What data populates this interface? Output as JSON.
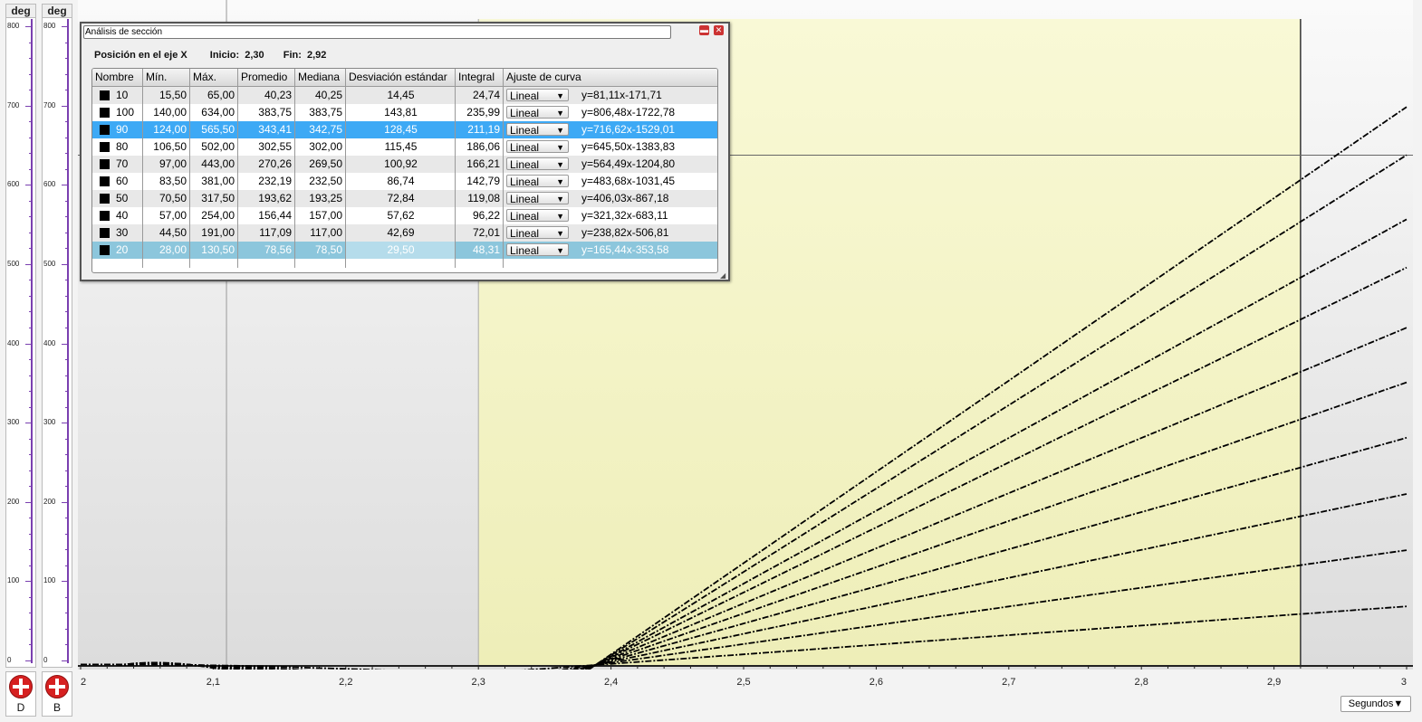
{
  "axes_left": [
    {
      "unit": "deg",
      "ticks": [
        "800",
        "700",
        "600",
        "500",
        "400",
        "300",
        "200",
        "100",
        "0"
      ],
      "button_label": "D"
    },
    {
      "unit": "deg",
      "ticks": [
        "800",
        "700",
        "600",
        "500",
        "400",
        "300",
        "200",
        "100",
        "0"
      ],
      "button_label": "B"
    }
  ],
  "x_axis": {
    "ticks": [
      "2",
      "2,1",
      "2,2",
      "2,3",
      "2,4",
      "2,5",
      "2,6",
      "2,7",
      "2,8",
      "2,9",
      "3"
    ],
    "units_label": "Segundos▼"
  },
  "dialog": {
    "title": "Análisis de sección",
    "minimize_glyph": "▬",
    "close_glyph": "✕",
    "position_label": "Posición en el eje X",
    "start_label": "Inicio:",
    "start_value": "2,30",
    "end_label": "Fin:",
    "end_value": "2,92",
    "columns": [
      "Nombre",
      "Mín.",
      "Máx.",
      "Promedio",
      "Mediana",
      "Desviación estándar",
      "Integral",
      "Ajuste de curva"
    ],
    "fit_option": "Lineal",
    "rows": [
      {
        "name": "10",
        "min": "15,50",
        "max": "65,00",
        "avg": "40,23",
        "median": "40,25",
        "std": "14,45",
        "integral": "24,74",
        "eq": "y=81,11x-171,71"
      },
      {
        "name": "100",
        "min": "140,00",
        "max": "634,00",
        "avg": "383,75",
        "median": "383,75",
        "std": "143,81",
        "integral": "235,99",
        "eq": "y=806,48x-1722,78"
      },
      {
        "name": "90",
        "min": "124,00",
        "max": "565,50",
        "avg": "343,41",
        "median": "342,75",
        "std": "128,45",
        "integral": "211,19",
        "eq": "y=716,62x-1529,01"
      },
      {
        "name": "80",
        "min": "106,50",
        "max": "502,00",
        "avg": "302,55",
        "median": "302,00",
        "std": "115,45",
        "integral": "186,06",
        "eq": "y=645,50x-1383,83"
      },
      {
        "name": "70",
        "min": "97,00",
        "max": "443,00",
        "avg": "270,26",
        "median": "269,50",
        "std": "100,92",
        "integral": "166,21",
        "eq": "y=564,49x-1204,80"
      },
      {
        "name": "60",
        "min": "83,50",
        "max": "381,00",
        "avg": "232,19",
        "median": "232,50",
        "std": "86,74",
        "integral": "142,79",
        "eq": "y=483,68x-1031,45"
      },
      {
        "name": "50",
        "min": "70,50",
        "max": "317,50",
        "avg": "193,62",
        "median": "193,25",
        "std": "72,84",
        "integral": "119,08",
        "eq": "y=406,03x-867,18"
      },
      {
        "name": "40",
        "min": "57,00",
        "max": "254,00",
        "avg": "156,44",
        "median": "157,00",
        "std": "57,62",
        "integral": "96,22",
        "eq": "y=321,32x-683,11"
      },
      {
        "name": "30",
        "min": "44,50",
        "max": "191,00",
        "avg": "117,09",
        "median": "117,00",
        "std": "42,69",
        "integral": "72,01",
        "eq": "y=238,82x-506,81"
      },
      {
        "name": "20",
        "min": "28,00",
        "max": "130,50",
        "avg": "78,56",
        "median": "78,50",
        "std": "29,50",
        "integral": "48,31",
        "eq": "y=165,44x-353,58"
      }
    ]
  },
  "chart_data": {
    "type": "line",
    "xlim": [
      2,
      3
    ],
    "ylim": [
      0,
      800
    ],
    "selection_x": [
      2.3,
      2.92
    ],
    "cursor_x": 2.11,
    "cursor_y": 635,
    "end_values": [
      695,
      635,
      555,
      495,
      420,
      352,
      283,
      213,
      143,
      73
    ],
    "colors": {
      "selection": "#f7f7c8",
      "curve": "#000000"
    }
  }
}
